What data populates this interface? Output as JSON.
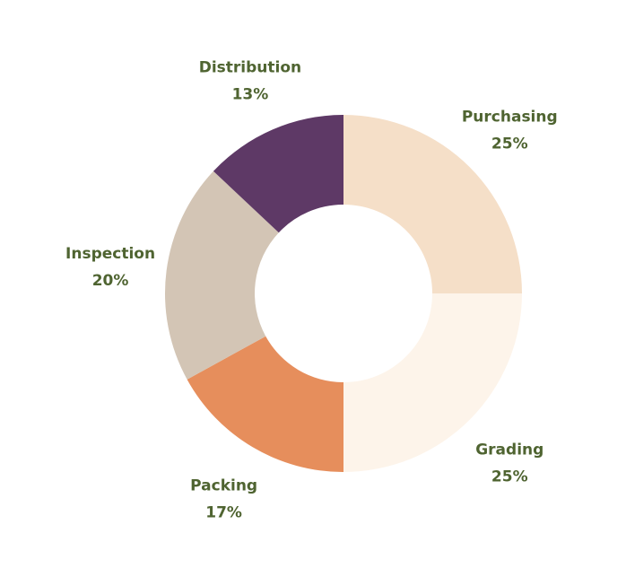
{
  "chart_data": {
    "type": "pie",
    "variant": "donut",
    "title": "",
    "categories": [
      "Purchasing",
      "Grading",
      "Packing",
      "Inspection",
      "Distribution"
    ],
    "values": [
      25,
      25,
      17,
      20,
      13
    ],
    "value_labels": [
      "25%",
      "25%",
      "17%",
      "20%",
      "13%"
    ],
    "colors": [
      "#f5dfc8",
      "#fdf4ea",
      "#e68e5c",
      "#d3c5b5",
      "#5e3966"
    ],
    "label_color": "#4f6431",
    "start_angle": "12 o'clock",
    "direction": "clockwise",
    "legend": "none"
  }
}
